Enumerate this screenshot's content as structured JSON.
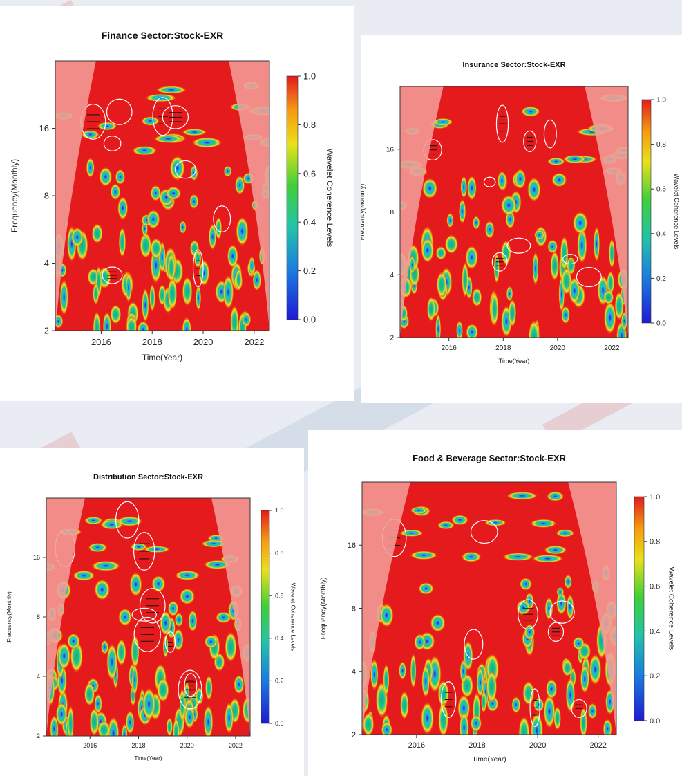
{
  "chart_data": [
    {
      "type": "heatmap",
      "title": "Finance Sector:Stock-EXR",
      "xlabel": "Time(Year)",
      "ylabel": "Frequency(Monthly)",
      "x_ticks": [
        "2016",
        "2018",
        "2020",
        "2022"
      ],
      "y_ticks": [
        "2",
        "4",
        "8",
        "16"
      ],
      "xlim": [
        2014.2,
        2022.6
      ],
      "ylim": [
        2,
        32
      ],
      "y_scale": "log2",
      "colorbar": {
        "label": "Wavelet Coherence Levels",
        "ticks": [
          "0.0",
          "0.2",
          "0.4",
          "0.6",
          "0.8",
          "1.0"
        ],
        "range": [
          0,
          1
        ]
      },
      "colors": {
        "high": "#e41a1c",
        "mid": "#f7e11a",
        "low_mid": "#22c38d",
        "low": "#2a1bd8",
        "cone": "#f39c97"
      }
    },
    {
      "type": "heatmap",
      "title": "Insurance Sector:Stock-EXR",
      "xlabel": "Time(Year)",
      "ylabel": "Frequency(Monthly)",
      "x_ticks": [
        "2016",
        "2018",
        "2020",
        "2022"
      ],
      "y_ticks": [
        "2",
        "4",
        "8",
        "16"
      ],
      "xlim": [
        2014.2,
        2022.6
      ],
      "ylim": [
        2,
        32
      ],
      "y_scale": "log2",
      "colorbar": {
        "label": "Wavelet Coherence Levels",
        "ticks": [
          "0.0",
          "0.2",
          "0.4",
          "0.6",
          "0.8",
          "1.0"
        ],
        "range": [
          0,
          1
        ]
      },
      "colors": {
        "high": "#e41a1c",
        "mid": "#f7e11a",
        "low_mid": "#22c38d",
        "low": "#2a1bd8",
        "cone": "#f39c97"
      }
    },
    {
      "type": "heatmap",
      "title": "Distribution Sector:Stock-EXR",
      "xlabel": "Time(Year)",
      "ylabel": "Frequency(Monthly)",
      "x_ticks": [
        "2016",
        "2018",
        "2020",
        "2022"
      ],
      "y_ticks": [
        "2",
        "4",
        "8",
        "16"
      ],
      "xlim": [
        2014.2,
        2022.6
      ],
      "ylim": [
        2,
        32
      ],
      "y_scale": "log2",
      "colorbar": {
        "label": "Wavelet Coherence Levels",
        "ticks": [
          "0.0",
          "0.2",
          "0.4",
          "0.6",
          "0.8",
          "1.0"
        ],
        "range": [
          0,
          1
        ]
      },
      "colors": {
        "high": "#e41a1c",
        "mid": "#f7e11a",
        "low_mid": "#22c38d",
        "low": "#2a1bd8",
        "cone": "#f39c97"
      }
    },
    {
      "type": "heatmap",
      "title": "Food & Beverage Sector:Stock-EXR",
      "xlabel": "Time(Year)",
      "ylabel": "Frequency(Monthly)",
      "x_ticks": [
        "2016",
        "2018",
        "2020",
        "2022"
      ],
      "y_ticks": [
        "2",
        "4",
        "8",
        "16"
      ],
      "xlim": [
        2014.2,
        2022.6
      ],
      "ylim": [
        2,
        32
      ],
      "y_scale": "log2",
      "colorbar": {
        "label": "Wavelet Coherence Levels",
        "ticks": [
          "0.0",
          "0.2",
          "0.4",
          "0.6",
          "0.8",
          "1.0"
        ],
        "range": [
          0,
          1
        ]
      },
      "colors": {
        "high": "#e41a1c",
        "mid": "#f7e11a",
        "low_mid": "#22c38d",
        "low": "#2a1bd8",
        "cone": "#f39c97"
      }
    }
  ]
}
